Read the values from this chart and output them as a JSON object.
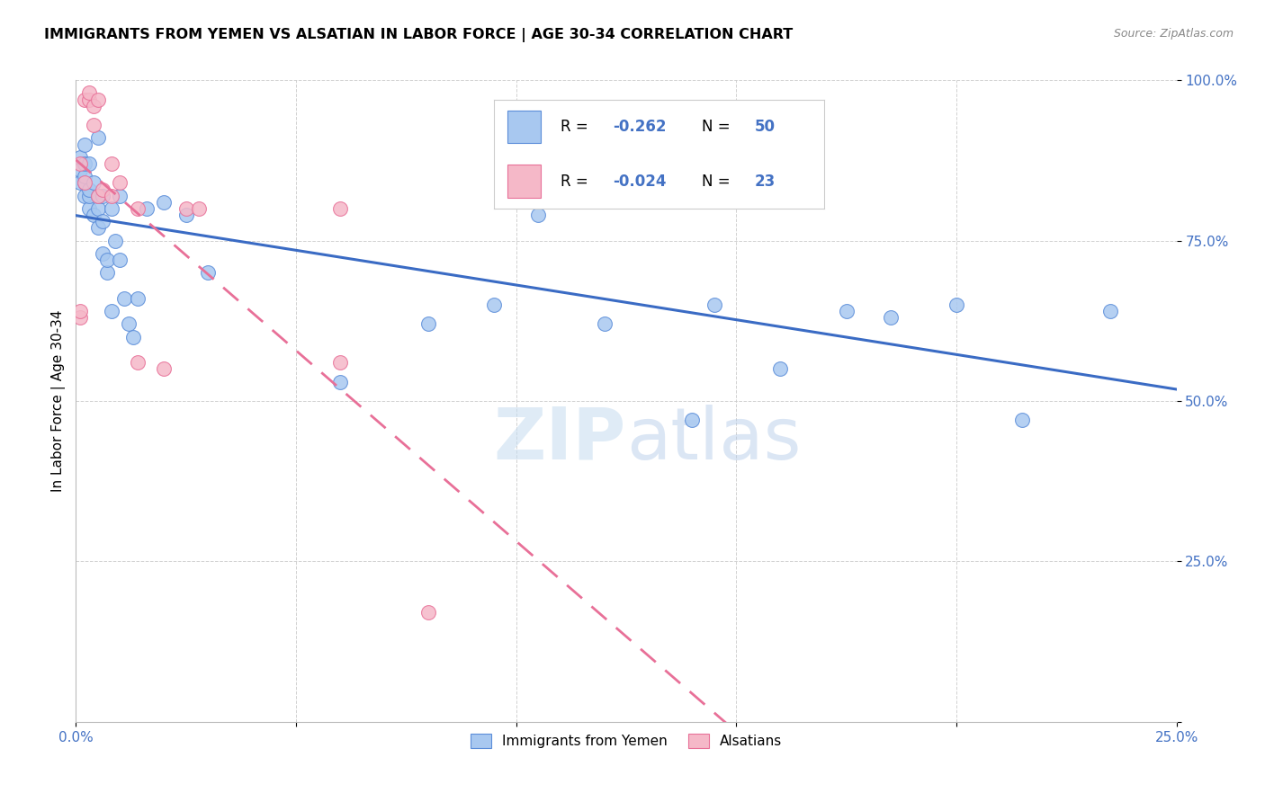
{
  "title": "IMMIGRANTS FROM YEMEN VS ALSATIAN IN LABOR FORCE | AGE 30-34 CORRELATION CHART",
  "source": "Source: ZipAtlas.com",
  "ylabel": "In Labor Force | Age 30-34",
  "xlim": [
    0.0,
    0.25
  ],
  "ylim": [
    0.0,
    1.0
  ],
  "xticks": [
    0.0,
    0.05,
    0.1,
    0.15,
    0.2,
    0.25
  ],
  "yticks": [
    0.0,
    0.25,
    0.5,
    0.75,
    1.0
  ],
  "xticklabels": [
    "0.0%",
    "",
    "",
    "",
    "",
    "25.0%"
  ],
  "yticklabels": [
    "",
    "25.0%",
    "50.0%",
    "75.0%",
    "100.0%"
  ],
  "blue_face_color": "#A8C8F0",
  "blue_edge_color": "#5B8DD9",
  "pink_face_color": "#F5B8C8",
  "pink_edge_color": "#E87098",
  "blue_line_color": "#3A6BC4",
  "pink_line_color": "#E87098",
  "legend_label1": "Immigrants from Yemen",
  "legend_label2": "Alsatians",
  "watermark": "ZIPatlas",
  "blue_x": [
    0.001,
    0.001,
    0.001,
    0.002,
    0.002,
    0.002,
    0.002,
    0.002,
    0.003,
    0.003,
    0.003,
    0.003,
    0.004,
    0.004,
    0.005,
    0.005,
    0.005,
    0.005,
    0.006,
    0.006,
    0.006,
    0.007,
    0.007,
    0.008,
    0.008,
    0.009,
    0.01,
    0.01,
    0.011,
    0.012,
    0.013,
    0.014,
    0.016,
    0.02,
    0.025,
    0.03,
    0.06,
    0.08,
    0.095,
    0.1,
    0.105,
    0.12,
    0.14,
    0.145,
    0.16,
    0.175,
    0.185,
    0.2,
    0.215,
    0.235
  ],
  "blue_y": [
    0.84,
    0.86,
    0.88,
    0.82,
    0.84,
    0.85,
    0.87,
    0.9,
    0.8,
    0.82,
    0.83,
    0.87,
    0.79,
    0.84,
    0.77,
    0.8,
    0.82,
    0.91,
    0.73,
    0.78,
    0.82,
    0.7,
    0.72,
    0.64,
    0.8,
    0.75,
    0.72,
    0.82,
    0.66,
    0.62,
    0.6,
    0.66,
    0.8,
    0.81,
    0.79,
    0.7,
    0.53,
    0.62,
    0.65,
    0.84,
    0.79,
    0.62,
    0.47,
    0.65,
    0.55,
    0.64,
    0.63,
    0.65,
    0.47,
    0.64
  ],
  "pink_x": [
    0.001,
    0.001,
    0.001,
    0.002,
    0.002,
    0.003,
    0.003,
    0.004,
    0.004,
    0.005,
    0.005,
    0.006,
    0.008,
    0.008,
    0.01,
    0.014,
    0.014,
    0.02,
    0.025,
    0.028,
    0.06,
    0.06,
    0.08
  ],
  "pink_y": [
    0.63,
    0.64,
    0.87,
    0.84,
    0.97,
    0.97,
    0.98,
    0.93,
    0.96,
    0.82,
    0.97,
    0.83,
    0.82,
    0.87,
    0.84,
    0.8,
    0.56,
    0.55,
    0.8,
    0.8,
    0.8,
    0.56,
    0.17
  ]
}
